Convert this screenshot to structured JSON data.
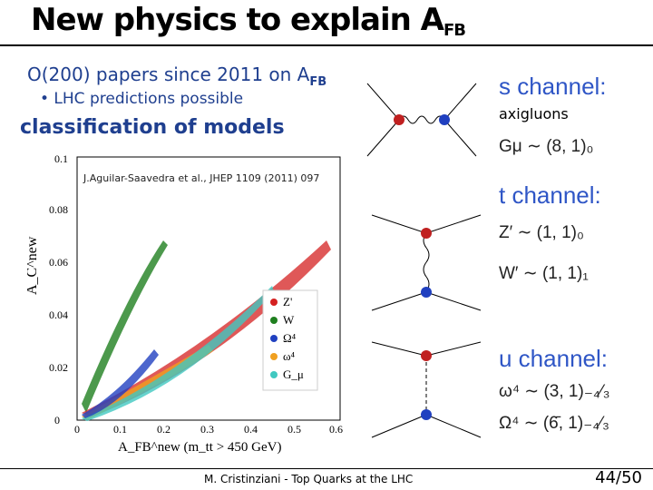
{
  "slide": {
    "title_main": "New physics to explain A",
    "title_sub": "FB",
    "bullet_main": "O(200) papers since 2011 on A",
    "bullet_main_sub": "FB",
    "bullet_sub": "• LHC predictions possible",
    "heading": "classification of models",
    "reference": "J.Aguilar-Saavedra et al., JHEP 1109 (2011) 097",
    "footer": "M. Cristinziani - Top Quarks at the LHC",
    "page_number": "44/50"
  },
  "plot": {
    "ylabel": "A_C^new",
    "xlabel": "A_FB^new (m_tt > 450 GeV)",
    "y_ticks": [
      "0",
      "0.02",
      "0.04",
      "0.06",
      "0.08",
      "0.1"
    ],
    "x_ticks": [
      "0",
      "0.1",
      "0.2",
      "0.3",
      "0.4",
      "0.5",
      "0.6"
    ],
    "legend": [
      "Z'",
      "W",
      "Ω⁴",
      "ω⁴",
      "G_μ"
    ],
    "colors": {
      "Z": "#d42020",
      "W": "#1f7f1f",
      "Omega4": "#2040c0",
      "omega4": "#f0a020",
      "G": "#40c8c0"
    }
  },
  "channels": {
    "s_title": "s channel:",
    "s_label": "axigluons",
    "s_item": "Gμ ∼ (8, 1)₀",
    "t_title": "t channel:",
    "t_item1": "Z′ ∼ (1, 1)₀",
    "t_item2": "W′ ∼ (1, 1)₁",
    "u_title": "u channel:",
    "u_item1": "ω⁴ ∼ (3, 1)₋₄⁄₃",
    "u_item2": "Ω⁴ ∼ (6̄, 1)₋₄⁄₃"
  }
}
